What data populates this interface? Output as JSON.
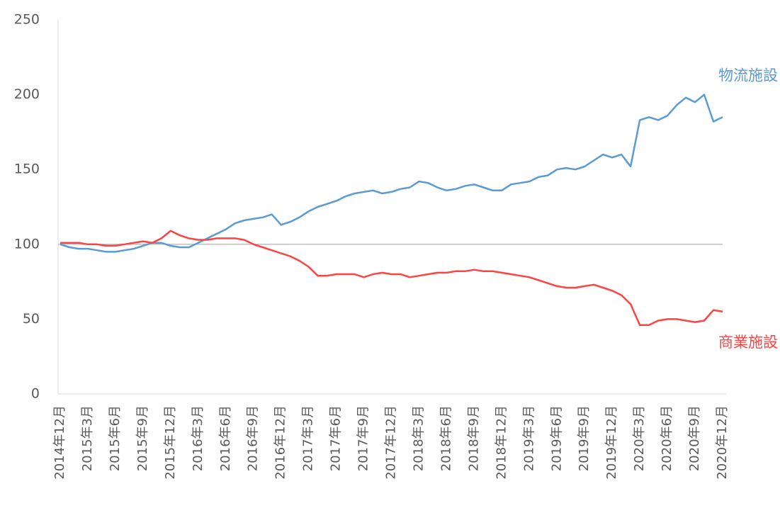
{
  "chart_data": {
    "type": "line",
    "categories": [
      "2014年12月",
      null,
      null,
      "2015年3月",
      null,
      null,
      "2015年6月",
      null,
      null,
      "2015年9月",
      null,
      null,
      "2015年12月",
      null,
      null,
      "2016年3月",
      null,
      null,
      "2016年6月",
      null,
      null,
      "2016年9月",
      null,
      null,
      "2016年12月",
      null,
      null,
      "2017年3月",
      null,
      null,
      "2017年6月",
      null,
      null,
      "2017年9月",
      null,
      null,
      "2017年12月",
      null,
      null,
      "2018年3月",
      null,
      null,
      "2018年6月",
      null,
      null,
      "2018年9月",
      null,
      null,
      "2018年12月",
      null,
      null,
      "2019年3月",
      null,
      null,
      "2019年6月",
      null,
      null,
      "2019年9月",
      null,
      null,
      "2019年12月",
      null,
      null,
      "2020年3月",
      null,
      null,
      "2020年6月",
      null,
      null,
      "2020年9月",
      null,
      null,
      "2020年12月"
    ],
    "series": [
      {
        "name": "物流施設",
        "color": "#5b9bd5",
        "values": [
          100,
          98,
          97,
          97,
          96,
          95,
          95,
          96,
          97,
          99,
          101,
          101,
          99,
          98,
          98,
          101,
          104,
          107,
          110,
          114,
          116,
          117,
          118,
          120,
          113,
          115,
          118,
          122,
          125,
          127,
          129,
          132,
          134,
          135,
          136,
          134,
          135,
          137,
          138,
          142,
          141,
          138,
          136,
          137,
          139,
          140,
          138,
          136,
          136,
          140,
          141,
          142,
          145,
          146,
          150,
          151,
          150,
          152,
          156,
          160,
          158,
          160,
          152,
          183,
          185,
          183,
          186,
          193,
          198,
          195,
          200,
          182,
          185
        ]
      },
      {
        "name": "商業施設",
        "color": "#ff4343",
        "values": [
          101,
          101,
          101,
          100,
          100,
          99,
          99,
          100,
          101,
          102,
          101,
          104,
          109,
          106,
          104,
          103,
          103,
          104,
          104,
          104,
          103,
          100,
          98,
          96,
          94,
          92,
          89,
          85,
          79,
          79,
          80,
          80,
          80,
          78,
          80,
          81,
          80,
          80,
          78,
          79,
          80,
          81,
          81,
          82,
          82,
          83,
          82,
          82,
          81,
          80,
          79,
          78,
          76,
          74,
          72,
          71,
          71,
          72,
          73,
          71,
          69,
          66,
          60,
          46,
          46,
          49,
          50,
          50,
          49,
          48,
          49,
          56,
          55
        ]
      }
    ],
    "ylim": [
      0,
      250
    ],
    "yticks": [
      0,
      50,
      100,
      150,
      200,
      250
    ],
    "reference_line": 100,
    "grid": false
  }
}
